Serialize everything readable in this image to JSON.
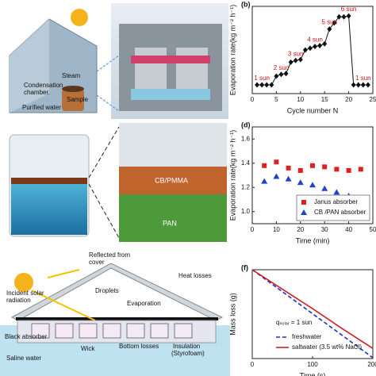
{
  "panels": {
    "a": {
      "texts": [
        "Steam",
        "Condensation",
        "chamber.",
        "Sample",
        "Purified water"
      ]
    },
    "c": {
      "texts": [
        "CB/PMMA",
        "PAN"
      ]
    },
    "e": {
      "texts": [
        "Reflected from",
        "cover",
        "Incident solar",
        "radiation",
        "Heat losses",
        "Droplets",
        "Evaporation",
        "Black absorber",
        "Wick",
        "Bottom losses",
        "Insulation",
        "(Styrofoam)",
        "Saline water"
      ]
    }
  },
  "chart_data": [
    {
      "type": "line",
      "panel_label": "(b)",
      "x_label": "Cycle number N",
      "y_label": "Evaporation rate(kg m⁻² h⁻¹)",
      "x": [
        1,
        2,
        3,
        4,
        5,
        6,
        7,
        8,
        9,
        10,
        11,
        12,
        13,
        14,
        15,
        16,
        17,
        18,
        19,
        20,
        21,
        22,
        23,
        24
      ],
      "values": [
        1,
        1,
        1,
        1,
        2,
        2.2,
        2.3,
        3.6,
        3.8,
        3.9,
        5,
        5.2,
        5.4,
        5.5,
        5.7,
        7.4,
        8.1,
        8.8,
        8.8,
        8.9,
        1,
        1,
        1,
        1
      ],
      "color": "#111",
      "marker": "diamond",
      "xlim": [
        0,
        25
      ],
      "xticks": [
        0,
        5,
        10,
        15,
        20,
        25
      ],
      "ylim": [
        0,
        10
      ],
      "annotations": [
        "1 sun",
        "2 sun",
        "3 sun",
        "4 sun",
        "5 sun",
        "6 sun",
        "1 sun"
      ]
    },
    {
      "type": "scatter",
      "panel_label": "(d)",
      "x_label": "Time (min)",
      "y_label": "Evaporation rate(kg m⁻² h⁻¹)",
      "x": [
        5,
        10,
        15,
        20,
        25,
        30,
        35,
        40,
        45
      ],
      "series": [
        {
          "name": "Janus absorber",
          "color": "#e02020",
          "marker": "square",
          "values": [
            1.38,
            1.41,
            1.36,
            1.34,
            1.38,
            1.37,
            1.35,
            1.34,
            1.35
          ]
        },
        {
          "name": "CB /PAN absorber",
          "color": "#2040d0",
          "marker": "triangle",
          "values": [
            1.25,
            1.29,
            1.27,
            1.24,
            1.22,
            1.19,
            1.16,
            1.13,
            1.1
          ]
        }
      ],
      "xlim": [
        0,
        50
      ],
      "xticks": [
        0,
        10,
        20,
        30,
        40,
        50
      ],
      "ylim": [
        0.9,
        1.7
      ],
      "yticks": [
        {
          "value": 1,
          "label": "1.0"
        },
        1.2,
        1.4,
        1.6
      ],
      "legend": "lower right"
    },
    {
      "type": "line",
      "panel_label": "(f)",
      "x_label": "Time (s)",
      "y_label": "Mass loss (g)",
      "note": "qₛₒₗₐᵣ = 1 sun",
      "x": [
        0,
        50,
        100,
        150,
        200
      ],
      "series": [
        {
          "name": "freshwater",
          "color": "#2030c0",
          "dash": true,
          "values": [
            0,
            -0.26,
            -0.52,
            -0.78,
            -1.04
          ]
        },
        {
          "name": "saltwater (3.5 wt% NaCl)",
          "color": "#d02020",
          "values": [
            0,
            -0.23,
            -0.46,
            -0.7,
            -0.93
          ]
        }
      ],
      "xlim": [
        0,
        200
      ],
      "xticks": [
        0,
        100,
        200
      ],
      "ylim": [
        -1.05,
        0
      ],
      "legend": "lower left"
    }
  ]
}
